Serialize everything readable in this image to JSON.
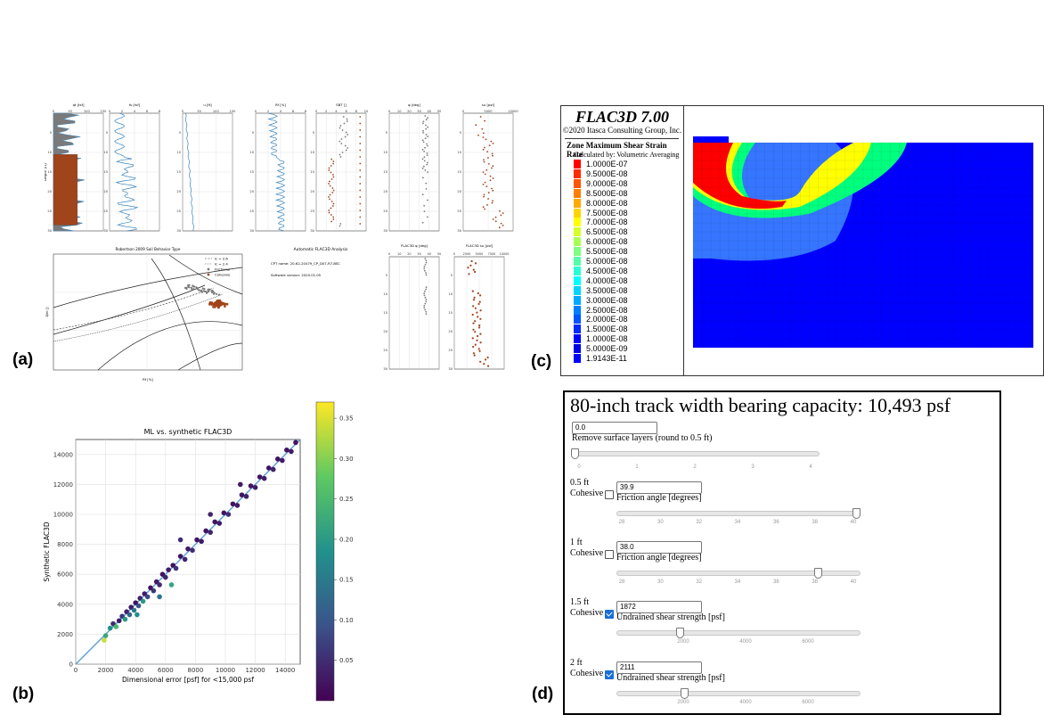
{
  "panels": {
    "a": {
      "letter": "(a)",
      "top_tracks": [
        {
          "title": "qt [tsf]",
          "xticks": [
            "0",
            "50",
            "100",
            "150"
          ]
        },
        {
          "title": "fs [tsf]",
          "xticks": [
            "0",
            "2",
            "4",
            "6",
            "8"
          ]
        },
        {
          "title": "u [ft]",
          "xticks": [
            "0",
            "50",
            "100",
            "150"
          ]
        },
        {
          "title": "Rf [%]",
          "xticks": [
            "0",
            "2",
            "4",
            "6",
            "8"
          ]
        },
        {
          "title": "SBT []",
          "xticks": [
            "0",
            "2",
            "4",
            "6",
            "8",
            "10"
          ]
        },
        {
          "title": "φ [deg]",
          "xticks": [
            "0",
            "10",
            "20",
            "30",
            "40",
            "50"
          ]
        },
        {
          "title": "su [psf]",
          "xticks": [
            "0",
            "5000",
            "10000"
          ]
        }
      ],
      "depth_label": "Depth [ft]",
      "depth_ticks": [
        "0",
        "5",
        "10",
        "15",
        "20",
        "25",
        "30"
      ],
      "sbt_title": "Robertson 2009 Soil Behavior Type",
      "sbt_legend": [
        "Ic = 2.6",
        "Ic = 2.4",
        "Frictional",
        "Cohesive"
      ],
      "sbt_ylabel": "Qtn []",
      "sbt_xlabel": "Rf [%]",
      "info_title": "Automatic FLAC3D Analysis",
      "info_cpt": "CPT name: 20-62-20479_CP_D07-R7-BSC",
      "info_version": "Software version: 2020.01.05",
      "bottom_tracks": [
        {
          "title": "FLAC3D φ [deg]",
          "xticks": [
            "0",
            "10",
            "20",
            "30",
            "40",
            "50"
          ]
        },
        {
          "title": "FLAC3D su [psf]",
          "xticks": [
            "0",
            "2500",
            "5000",
            "7500",
            "10000"
          ]
        }
      ],
      "colors": {
        "frictional": "#7a7a7a",
        "cohesive": "#a0441c",
        "line": "#3a86c0"
      }
    },
    "b": {
      "letter": "(b)",
      "colorbar_ticks": [
        "0.35",
        "0.30",
        "0.25",
        "0.20",
        "0.15",
        "0.10",
        "0.05"
      ]
    },
    "c": {
      "letter": "(c)",
      "software": "FLAC3D 7.00",
      "copyright": "©2020 Itasca Consulting Group, Inc.",
      "legend_title": "Zone Maximum Shear Strain Rate",
      "legend_subtitle": "Calculated by: Volumetric Averaging",
      "legend_values": [
        "1.0000E-07",
        "9.5000E-08",
        "9.0000E-08",
        "8.5000E-08",
        "8.0000E-08",
        "7.5000E-08",
        "7.0000E-08",
        "6.5000E-08",
        "6.0000E-08",
        "5.5000E-08",
        "5.0000E-08",
        "4.5000E-08",
        "4.0000E-08",
        "3.5000E-08",
        "3.0000E-08",
        "2.5000E-08",
        "2.0000E-08",
        "1.5000E-08",
        "1.0000E-08",
        "5.0000E-09",
        "1.9143E-11"
      ],
      "legend_colors": [
        "#ff0000",
        "#ff2a00",
        "#ff5500",
        "#ff7f00",
        "#ffaa00",
        "#ffd400",
        "#ffff00",
        "#d4ff2a",
        "#aaff55",
        "#7fff7f",
        "#55ffaa",
        "#2affd4",
        "#00ffff",
        "#00d4ff",
        "#00aaff",
        "#007fff",
        "#0055ff",
        "#002aff",
        "#0000ff",
        "#0000e6",
        "#0000ff"
      ]
    },
    "d": {
      "letter": "(d)",
      "title": "80-inch track width bearing capacity: 10,493 psf",
      "surface": {
        "value": "0.0",
        "label": "Remove surface layers (round to 0.5 ft)",
        "ticks": [
          "0",
          "1",
          "2",
          "3",
          "4"
        ],
        "level": 0.0
      },
      "layers": [
        {
          "depth": "0.5 ft",
          "cohesive_label": "Cohesive",
          "cohesive": false,
          "value": "39.9",
          "param": "Friction angle [degrees]",
          "ticks": [
            "28",
            "30",
            "32",
            "34",
            "36",
            "38",
            "40"
          ],
          "level": 0.99
        },
        {
          "depth": "1 ft",
          "cohesive_label": "Cohesive",
          "cohesive": false,
          "value": "38.0",
          "param": "Friction angle [degrees]",
          "ticks": [
            "28",
            "30",
            "32",
            "34",
            "36",
            "38",
            "40"
          ],
          "level": 0.83
        },
        {
          "depth": "1.5 ft",
          "cohesive_label": "Cohesive",
          "cohesive": true,
          "value": "1872",
          "param": "Undrained shear strength [psf]",
          "ticks": [
            "2000",
            "4000",
            "6000"
          ],
          "level": 0.26
        },
        {
          "depth": "2 ft",
          "cohesive_label": "Cohesive",
          "cohesive": true,
          "value": "2111",
          "param": "Undrained shear strength [psf]",
          "ticks": [
            "2000",
            "4000",
            "6000"
          ],
          "level": 0.28
        }
      ]
    }
  },
  "chart_data": [
    {
      "type": "scatter",
      "title": "ML vs. synthetic FLAC3D",
      "xlabel": "Dimensional error [psf] for <15,000 psf",
      "ylabel": "Synthetic FLAC3D",
      "xlim": [
        0,
        15000
      ],
      "ylim": [
        0,
        15000
      ],
      "xticks": [
        0,
        2000,
        4000,
        6000,
        8000,
        10000,
        12000,
        14000
      ],
      "yticks": [
        0,
        2000,
        4000,
        6000,
        8000,
        10000,
        12000,
        14000
      ],
      "colorbar_range": [
        0,
        0.37
      ],
      "reference_line": [
        [
          0,
          0
        ],
        [
          15000,
          15000
        ]
      ],
      "points": [
        [
          1900,
          1600,
          0.34
        ],
        [
          2000,
          1900,
          0.22
        ],
        [
          2300,
          2400,
          0.18
        ],
        [
          2500,
          2700,
          0.05
        ],
        [
          2700,
          2500,
          0.25
        ],
        [
          2900,
          2900,
          0.03
        ],
        [
          3100,
          3200,
          0.06
        ],
        [
          3300,
          3000,
          0.2
        ],
        [
          3400,
          3500,
          0.04
        ],
        [
          3600,
          3300,
          0.12
        ],
        [
          3700,
          3800,
          0.03
        ],
        [
          3900,
          3600,
          0.15
        ],
        [
          4000,
          4100,
          0.02
        ],
        [
          4200,
          3900,
          0.1
        ],
        [
          4300,
          4400,
          0.04
        ],
        [
          4500,
          4200,
          0.2
        ],
        [
          4600,
          4700,
          0.03
        ],
        [
          4800,
          4500,
          0.08
        ],
        [
          5000,
          5100,
          0.02
        ],
        [
          5200,
          4900,
          0.06
        ],
        [
          5400,
          5500,
          0.03
        ],
        [
          5600,
          5300,
          0.05
        ],
        [
          5800,
          6000,
          0.02
        ],
        [
          6000,
          5800,
          0.04
        ],
        [
          6200,
          6300,
          0.03
        ],
        [
          6500,
          6600,
          0.02
        ],
        [
          6700,
          6400,
          0.06
        ],
        [
          7000,
          7200,
          0.02
        ],
        [
          7300,
          7000,
          0.04
        ],
        [
          7500,
          7700,
          0.03
        ],
        [
          7800,
          7600,
          0.05
        ],
        [
          8100,
          8300,
          0.02
        ],
        [
          8400,
          8200,
          0.03
        ],
        [
          8700,
          8900,
          0.02
        ],
        [
          9000,
          8800,
          0.04
        ],
        [
          9300,
          9500,
          0.02
        ],
        [
          9600,
          9400,
          0.03
        ],
        [
          9900,
          10100,
          0.02
        ],
        [
          10200,
          10000,
          0.05
        ],
        [
          10500,
          10700,
          0.02
        ],
        [
          10800,
          10600,
          0.03
        ],
        [
          11100,
          11300,
          0.02
        ],
        [
          11400,
          11200,
          0.04
        ],
        [
          11700,
          11900,
          0.02
        ],
        [
          12000,
          11800,
          0.03
        ],
        [
          12300,
          12500,
          0.02
        ],
        [
          12600,
          12400,
          0.03
        ],
        [
          12900,
          13100,
          0.02
        ],
        [
          13200,
          13000,
          0.04
        ],
        [
          13500,
          13700,
          0.02
        ],
        [
          13800,
          13600,
          0.03
        ],
        [
          14100,
          14300,
          0.02
        ],
        [
          14400,
          14200,
          0.03
        ],
        [
          14700,
          14800,
          0.02
        ],
        [
          9000,
          10000,
          0.04
        ],
        [
          6400,
          5300,
          0.22
        ],
        [
          5600,
          4500,
          0.14
        ],
        [
          4100,
          3300,
          0.18
        ],
        [
          7000,
          8300,
          0.05
        ],
        [
          11000,
          12000,
          0.03
        ]
      ]
    }
  ]
}
